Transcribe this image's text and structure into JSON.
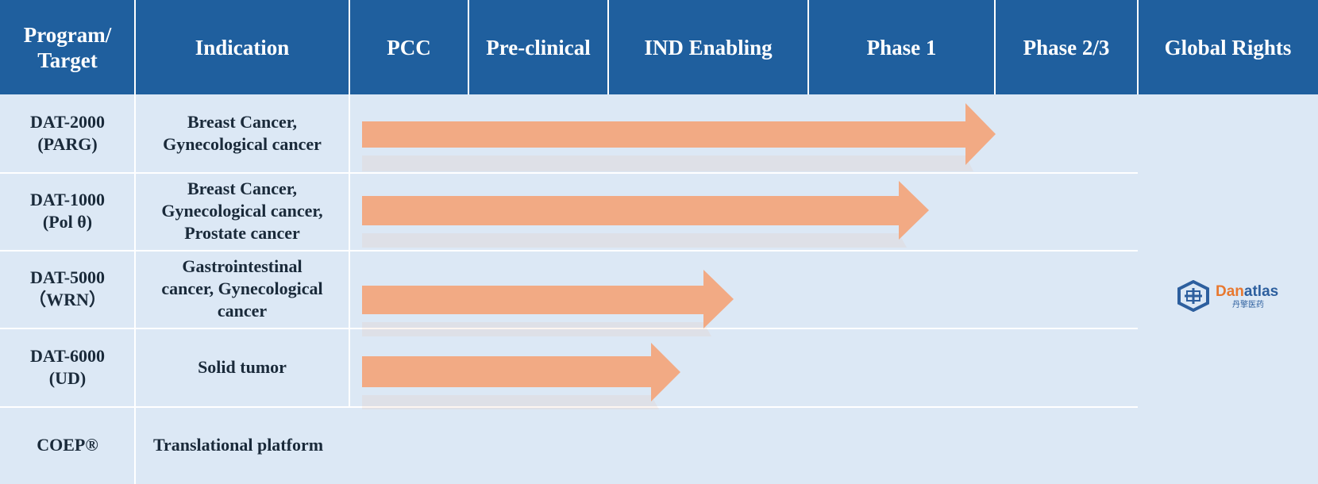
{
  "header": {
    "columns": [
      "Program/ Target",
      "Indication",
      "PCC",
      "Pre-clinical",
      "IND Enabling",
      "Phase 1",
      "Phase 2/3",
      "Global Rights"
    ]
  },
  "rows": [
    {
      "program": [
        "DAT-2000",
        "(PARG)"
      ],
      "indication": [
        "Breast Cancer,",
        "Gynecological cancer"
      ],
      "stage": "Phase 1"
    },
    {
      "program": [
        "DAT-1000",
        "(Pol θ)"
      ],
      "indication": [
        "Breast Cancer,",
        "Gynecological cancer,",
        "Prostate cancer"
      ],
      "stage": "Phase 1"
    },
    {
      "program": [
        "DAT-5000",
        "（WRN）"
      ],
      "indication": [
        "Gastrointestinal",
        "cancer, Gynecological",
        "cancer"
      ],
      "stage": "IND Enabling"
    },
    {
      "program": [
        "DAT-6000",
        "(UD)"
      ],
      "indication": [
        "Solid tumor"
      ],
      "stage": "IND Enabling"
    },
    {
      "program": [
        "COEP®"
      ],
      "indication": [
        "Translational platform"
      ],
      "stage": ""
    }
  ],
  "global_rights": {
    "logo_name_part1": "Dan",
    "logo_name_part2": "atlas",
    "logo_subtitle": "丹擎医药"
  },
  "colors": {
    "header_bg": "#1f5f9e",
    "body_bg": "#dce8f5",
    "arrow": "#f2aa84",
    "logo_orange": "#e8782f",
    "logo_blue": "#2d5f9e"
  }
}
